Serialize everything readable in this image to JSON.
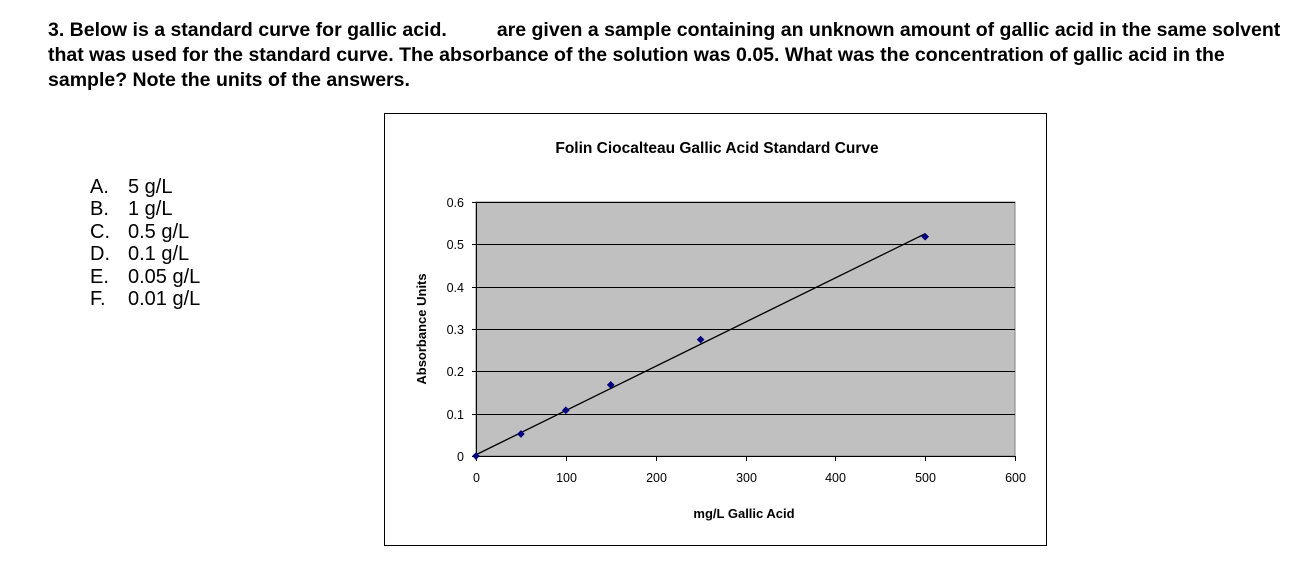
{
  "question": {
    "text_before_gap": "3.  Below is a standard curve for gallic acid.",
    "text_after_gap": "are given a sample containing an unknown amount of gallic acid in the same solvent that was used for the standard curve. The absorbance of the solution was 0.05. What was the concentration of gallic acid in the sample? Note the units of the answers."
  },
  "options": [
    {
      "letter": "A.",
      "text": "5 g/L"
    },
    {
      "letter": "B.",
      "text": "1 g/L"
    },
    {
      "letter": "C.",
      "text": "0.5 g/L"
    },
    {
      "letter": "D.",
      "text": "0.1 g/L"
    },
    {
      "letter": "E.",
      "text": "0.05 g/L"
    },
    {
      "letter": "F.",
      "text": "0.01 g/L"
    }
  ],
  "chart_data": {
    "type": "scatter",
    "title": "Folin Ciocalteau Gallic Acid Standard Curve",
    "xlabel": "mg/L Gallic Acid",
    "ylabel": "Absorbance Units",
    "xlim": [
      0,
      600
    ],
    "ylim": [
      0,
      0.6
    ],
    "x_ticks": [
      "0",
      "100",
      "200",
      "300",
      "400",
      "500",
      "600"
    ],
    "y_ticks": [
      "0",
      "0.1",
      "0.2",
      "0.3",
      "0.4",
      "0.5",
      "0.6"
    ],
    "x_tick_values": [
      0,
      100,
      200,
      300,
      400,
      500,
      600
    ],
    "y_tick_values": [
      0,
      0.1,
      0.2,
      0.3,
      0.4,
      0.5,
      0.6
    ],
    "points": [
      {
        "x": 0,
        "y": 0
      },
      {
        "x": 50,
        "y": 0.052
      },
      {
        "x": 100,
        "y": 0.108
      },
      {
        "x": 150,
        "y": 0.168
      },
      {
        "x": 250,
        "y": 0.275
      },
      {
        "x": 500,
        "y": 0.518
      }
    ],
    "trendline": {
      "x_start": 0,
      "y_start": 0.003,
      "x_end": 500,
      "y_end": 0.525
    },
    "grid": "horizontal",
    "legend": "none",
    "colors": {
      "plot_background": "#c0c0c0",
      "marker": "#000080",
      "gridline": "#000000",
      "trendline": "#000000"
    }
  }
}
